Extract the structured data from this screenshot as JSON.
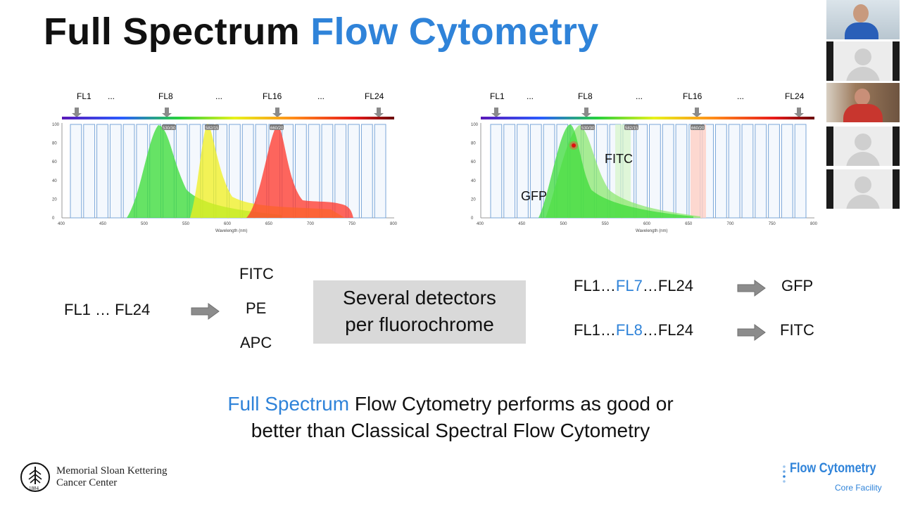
{
  "slide": {
    "title_part1": "Full Spectrum",
    "title_part2": "Flow Cytometry",
    "spectra": {
      "detectors_top": [
        "FL1",
        "...",
        "FL8",
        "...",
        "FL16",
        "...",
        "FL24"
      ],
      "y_ticks": [
        "0",
        "20",
        "40",
        "60",
        "80",
        "100"
      ],
      "x_ticks": [
        "400",
        "450",
        "500",
        "550",
        "600",
        "650",
        "700",
        "750",
        "800"
      ],
      "x_label": "Wavelength (nm)",
      "left_filter_labels": [
        "530/30",
        "582/15",
        "660/20"
      ],
      "right_filter_labels": [
        "530/30",
        "582/15",
        "660/20"
      ],
      "right_annotations": {
        "fitc": "FITC",
        "gfp": "GFP"
      },
      "colors": {
        "green": "#3ddc3a",
        "yellow": "#f2f01e",
        "red": "#ff3b2f",
        "green_light": "#8de870"
      }
    },
    "classical": {
      "range": "FL1 … FL24",
      "outputs": [
        "FITC",
        "PE",
        "APC"
      ]
    },
    "callout": {
      "line1": "Several detectors",
      "line2": "per fluorochrome"
    },
    "full_spectrum": {
      "row1": {
        "prefix": "FL1…",
        "highlight": "FL7",
        "suffix": "…FL24",
        "result": "GFP"
      },
      "row2": {
        "prefix": "FL1…",
        "highlight": "FL8",
        "suffix": "…FL24",
        "result": "FITC"
      }
    },
    "conclusion": {
      "highlight": "Full Spectrum",
      "line1_rest": " Flow Cytometry performs as good or",
      "line2": "better than Classical Spectral Flow Cytometry"
    },
    "footer": {
      "msk_line1": "Memorial Sloan Kettering",
      "msk_line2": "Cancer Center",
      "msk_year": "1884",
      "fc_title": "Flow Cytometry",
      "fc_subtitle": "Core Facility"
    },
    "accent_color": "#2f83d9"
  }
}
